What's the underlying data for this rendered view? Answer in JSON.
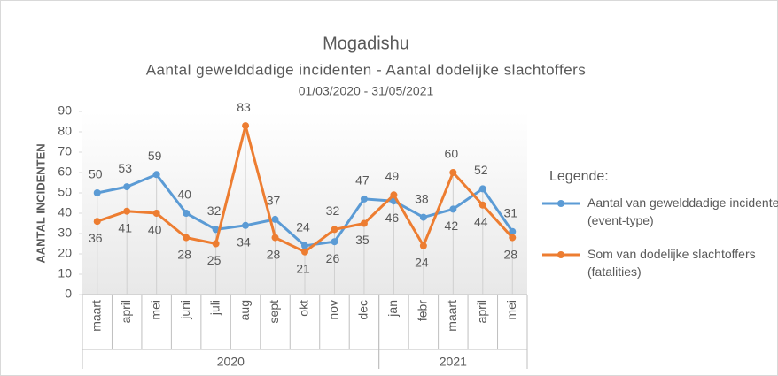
{
  "chart_data": {
    "type": "line",
    "title": "Mogadishu",
    "subtitle": "Aantal gewelddadige incidenten - Aantal dodelijke slachtoffers",
    "date_range": "01/03/2020 - 31/05/2021",
    "y_label": "AANTAL INCIDENTEN",
    "legend_title": "Legende:",
    "groups": [
      {
        "name": "2020",
        "categories": [
          "maart",
          "april",
          "mei",
          "juni",
          "juli",
          "aug",
          "sept",
          "okt",
          "nov",
          "dec"
        ]
      },
      {
        "name": "2021",
        "categories": [
          "jan",
          "febr",
          "maart",
          "april",
          "mei"
        ]
      }
    ],
    "series": [
      {
        "name": "Aantal van gewelddadige incidenten (event-type)",
        "color": "#5b9bd5",
        "values": [
          50,
          53,
          59,
          40,
          32,
          34,
          37,
          24,
          26,
          47,
          46,
          38,
          42,
          52,
          31
        ]
      },
      {
        "name": "Som van dodelijke slachtoffers (fatalities)",
        "color": "#ed7d31",
        "values": [
          36,
          41,
          40,
          28,
          25,
          83,
          28,
          21,
          32,
          35,
          49,
          24,
          60,
          44,
          28
        ]
      }
    ],
    "ylim": [
      0,
      90
    ],
    "yticks": [
      0,
      10,
      20,
      30,
      40,
      50,
      60,
      70,
      80,
      90
    ],
    "legend": "right"
  }
}
